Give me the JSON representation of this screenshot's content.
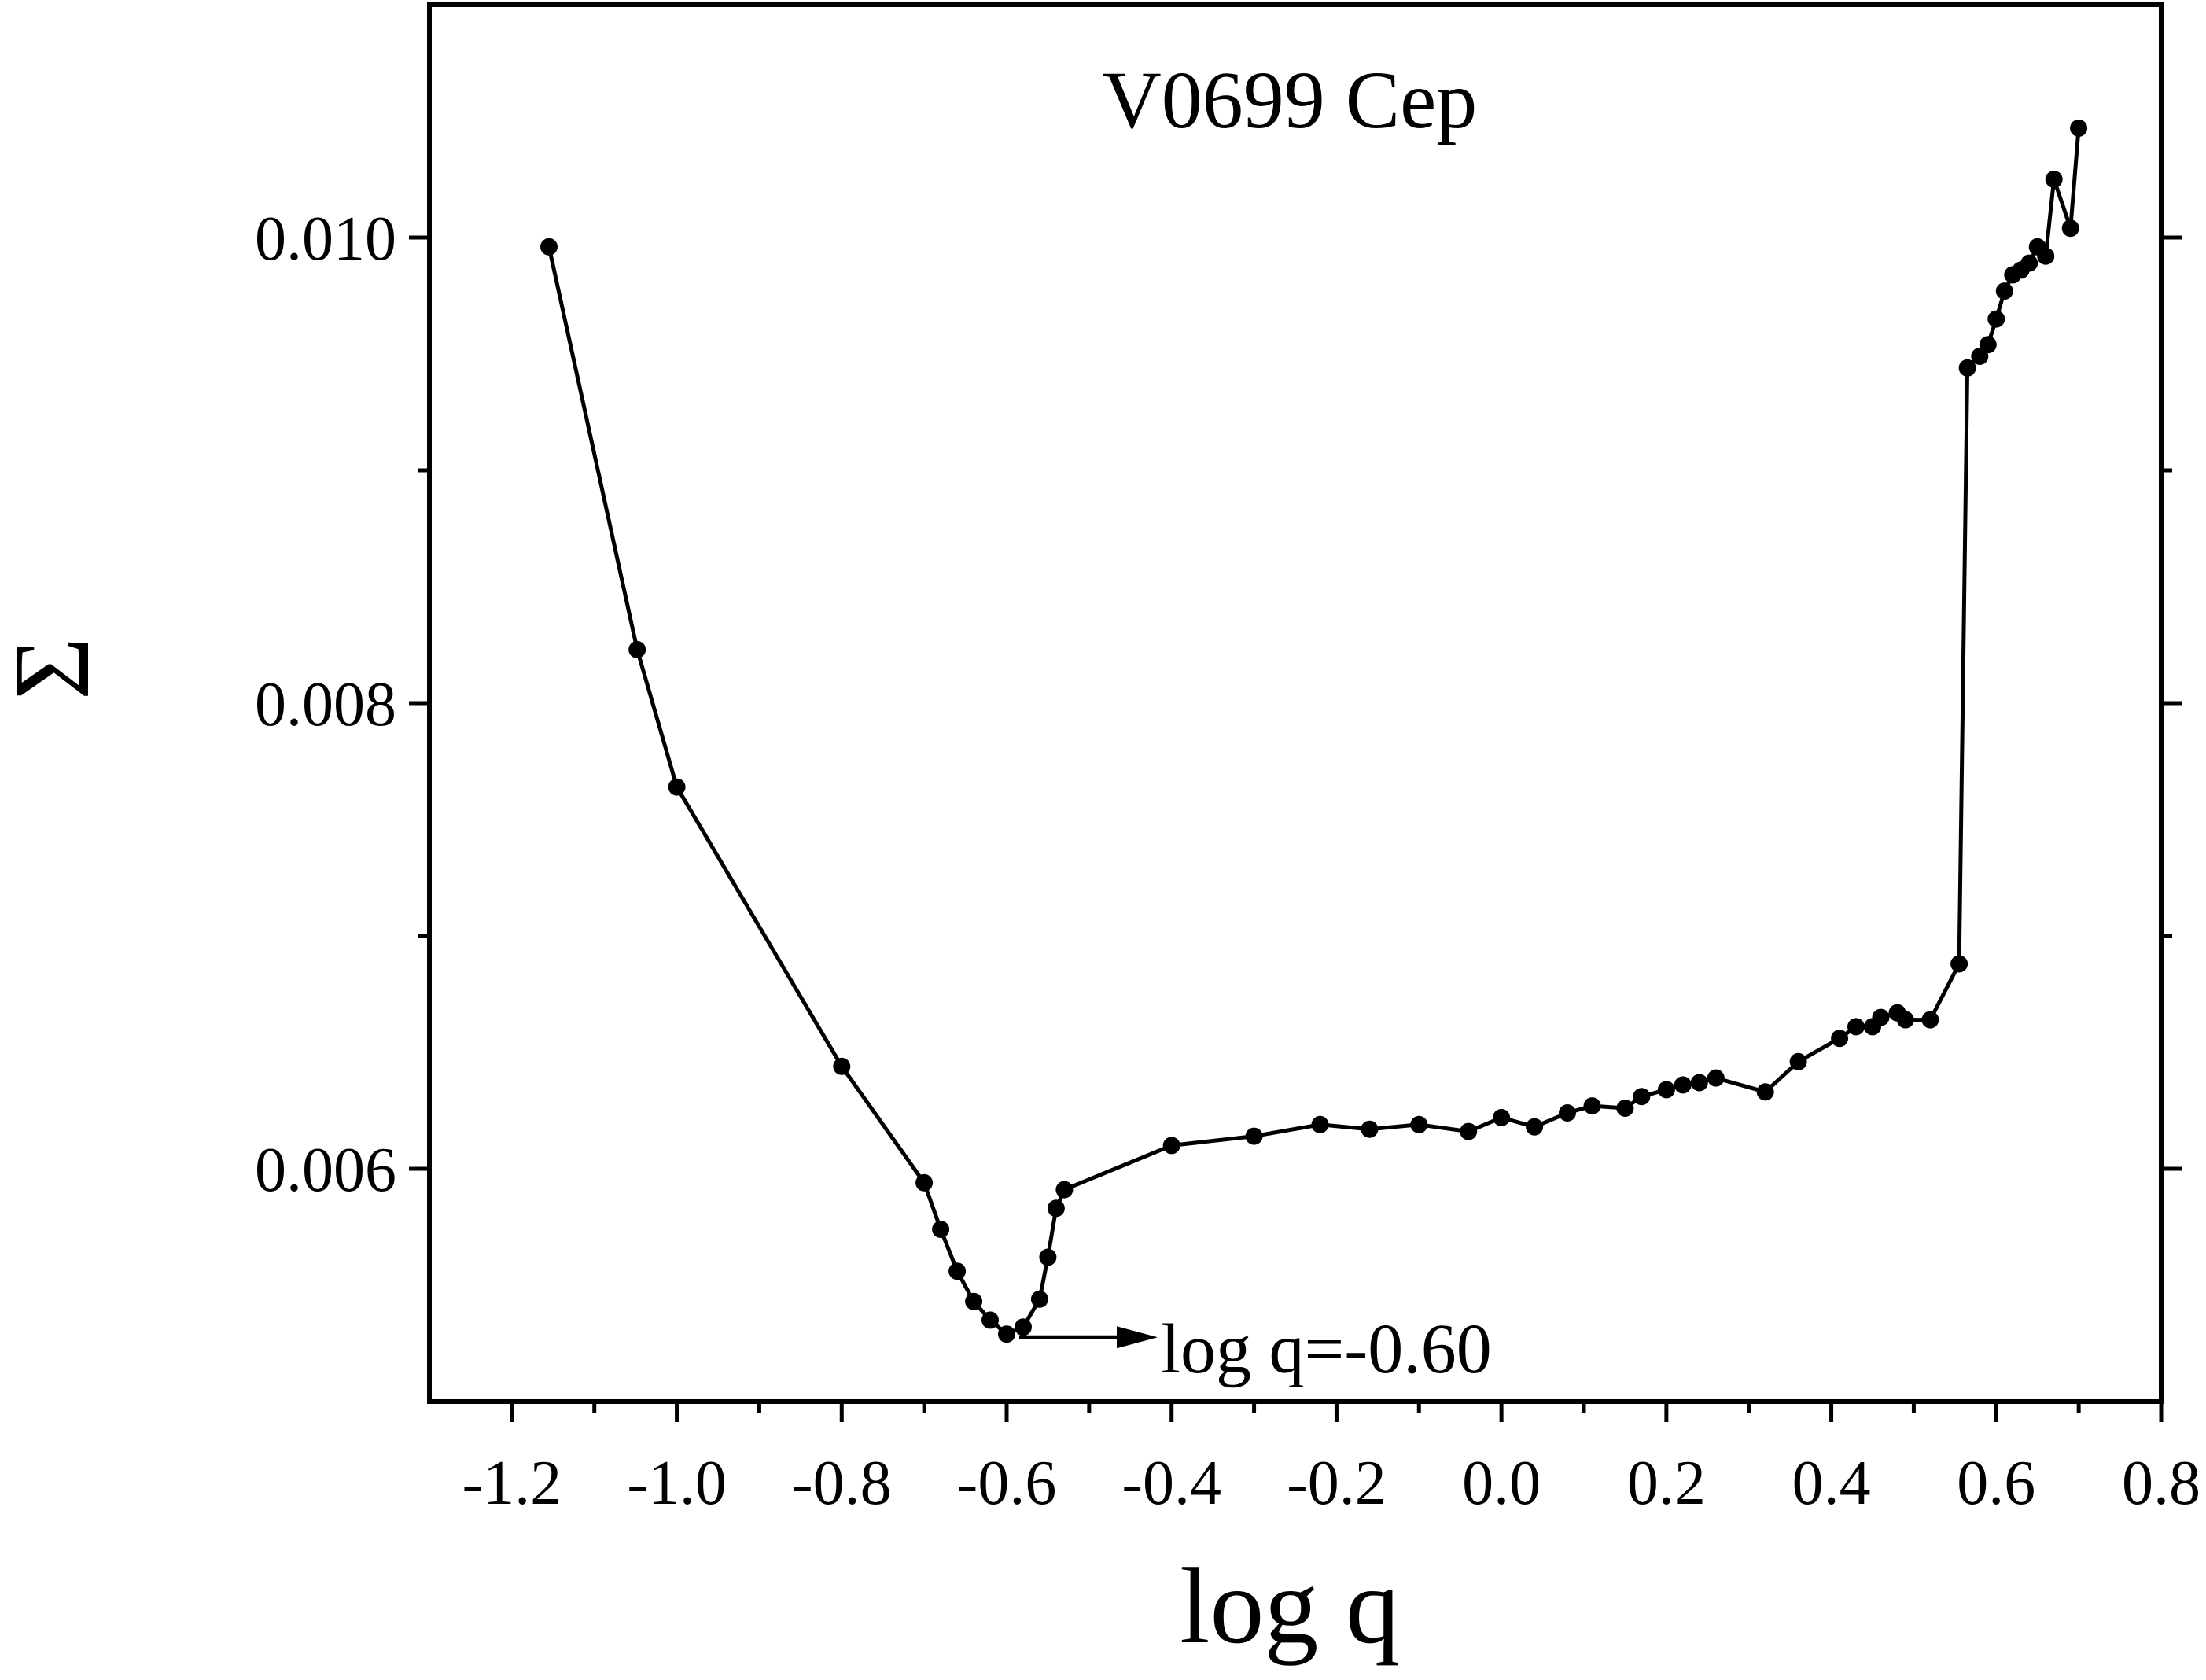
{
  "chart_data": {
    "type": "line",
    "title": "V0699 Cep",
    "xlabel": "log q",
    "ylabel": "Σ",
    "xlim": [
      -1.3,
      0.8
    ],
    "ylim": [
      0.005,
      0.011
    ],
    "x_ticks": [
      -1.2,
      -1.0,
      -0.8,
      -0.6,
      -0.4,
      -0.2,
      0.0,
      0.2,
      0.4,
      0.6,
      0.8
    ],
    "x_tick_labels": [
      "-1.2",
      "-1.0",
      "-0.8",
      "-0.6",
      "-0.4",
      "-0.2",
      "0.0",
      "0.2",
      "0.4",
      "0.6",
      "0.8"
    ],
    "y_ticks": [
      0.006,
      0.008,
      0.01
    ],
    "y_tick_labels": [
      "0.006",
      "0.008",
      "0.010"
    ],
    "y_minor_ticks": [
      0.007,
      0.009
    ],
    "grid": false,
    "series": [
      {
        "name": "V0699 Cep",
        "x": [
          -1.155,
          -1.048,
          -1.0,
          -0.8,
          -0.7,
          -0.68,
          -0.66,
          -0.64,
          -0.62,
          -0.6,
          -0.58,
          -0.56,
          -0.55,
          -0.54,
          -0.53,
          -0.4,
          -0.3,
          -0.22,
          -0.16,
          -0.1,
          -0.04,
          0.0,
          0.04,
          0.08,
          0.11,
          0.15,
          0.17,
          0.2,
          0.22,
          0.24,
          0.26,
          0.32,
          0.36,
          0.41,
          0.43,
          0.45,
          0.46,
          0.48,
          0.49,
          0.52,
          0.555,
          0.565,
          0.58,
          0.59,
          0.6,
          0.61,
          0.62,
          0.63,
          0.64,
          0.65,
          0.66,
          0.67,
          0.69,
          0.7
        ],
        "y": [
          0.00996,
          0.00823,
          0.00764,
          0.00644,
          0.00594,
          0.00574,
          0.00556,
          0.00543,
          0.00535,
          0.00529,
          0.00532,
          0.00544,
          0.00562,
          0.00583,
          0.00591,
          0.0061,
          0.00614,
          0.00619,
          0.00617,
          0.00619,
          0.00616,
          0.00622,
          0.00618,
          0.00624,
          0.00627,
          0.00626,
          0.00631,
          0.00634,
          0.00636,
          0.00637,
          0.00639,
          0.00633,
          0.00646,
          0.00656,
          0.00661,
          0.00661,
          0.00665,
          0.00667,
          0.00664,
          0.00664,
          0.00688,
          0.00944,
          0.00949,
          0.00954,
          0.00965,
          0.00977,
          0.00984,
          0.00986,
          0.00989,
          0.00996,
          0.00992,
          0.01025,
          0.01004,
          0.01047
        ]
      }
    ],
    "annotations": [
      {
        "text": "log q=-0.60",
        "target_x": -0.6,
        "target_y": 0.00529
      }
    ]
  }
}
